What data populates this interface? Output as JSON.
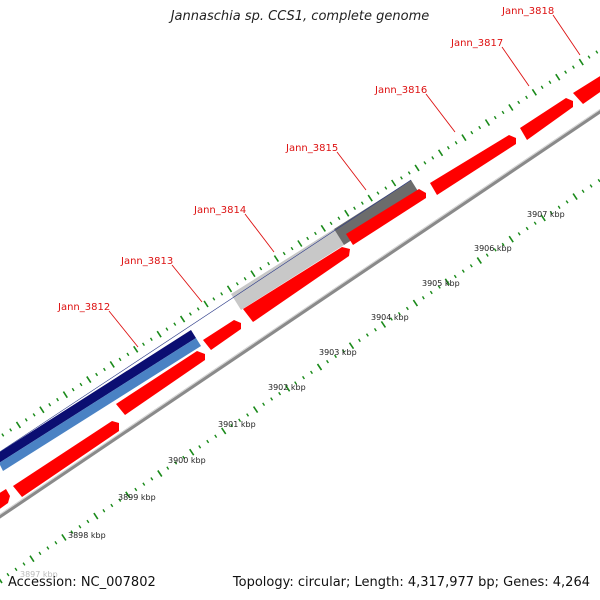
{
  "title": "Jannaschia sp. CCS1, complete genome",
  "footer": {
    "accession": "Accession: NC_007802",
    "summary": "Topology: circular; Length: 4,317,977 bp; Genes: 4,264"
  },
  "colors": {
    "forward_gene": "#ff0000",
    "highlight_dark": "#0b0e72",
    "highlight_light": "#4a82c4",
    "light_gray": "#c8c8c8",
    "dark_gray": "#6c6c6c",
    "backbone": "#8a8a8a",
    "ticks": "#1a8a1a",
    "label": "#dd1111"
  },
  "gene_labels": [
    "Jann_3812",
    "Jann_3813",
    "Jann_3814",
    "Jann_3815",
    "Jann_3816",
    "Jann_3817",
    "Jann_3818"
  ],
  "kbp_labels": [
    "3897 kbp",
    "3898 kbp",
    "3899 kbp",
    "3900 kbp",
    "3901 kbp",
    "3902 kbp",
    "3903 kbp",
    "3904 kbp",
    "3905 kbp",
    "3906 kbp",
    "3907 kbp"
  ]
}
